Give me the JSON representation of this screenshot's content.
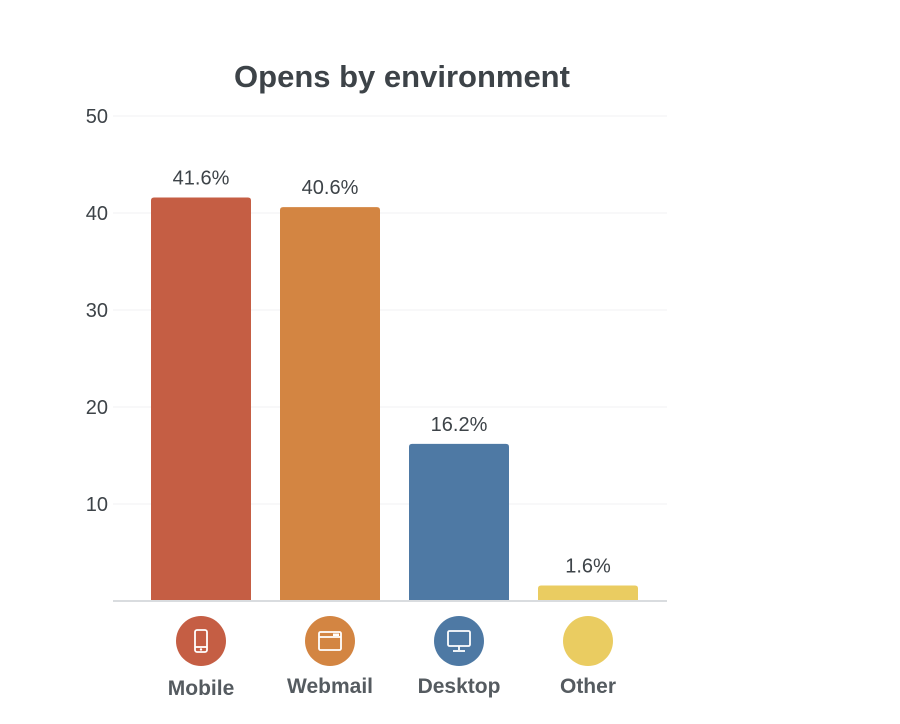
{
  "chart_data": {
    "type": "bar",
    "title": "Opens by environment",
    "xlabel": "",
    "ylabel": "",
    "ylim": [
      0,
      50
    ],
    "yticks": [
      10,
      20,
      30,
      40,
      50
    ],
    "grid": true,
    "categories": [
      "Mobile",
      "Webmail",
      "Desktop",
      "Other"
    ],
    "values": [
      41.6,
      40.6,
      16.2,
      1.6
    ],
    "data_labels": [
      "41.6%",
      "40.6%",
      "16.2%",
      "1.6%"
    ],
    "colors": [
      "#c55e44",
      "#d38542",
      "#4e79a4",
      "#eacc61"
    ],
    "icons": [
      "mobile-phone-icon",
      "webmail-browser-icon",
      "desktop-monitor-icon",
      ""
    ]
  }
}
